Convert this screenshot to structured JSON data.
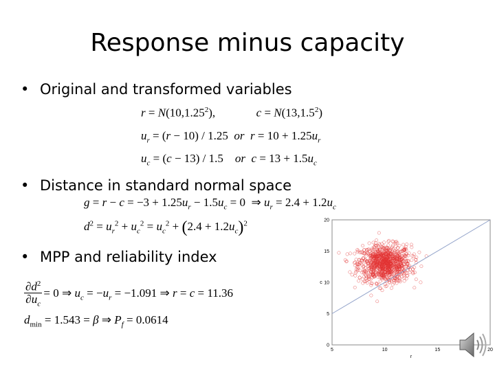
{
  "slide": {
    "title": "Response minus capacity",
    "bullets": [
      "Original and transformed variables",
      "Distance in standard normal space",
      "MPP and reliability index"
    ]
  },
  "chart_data": {
    "type": "scatter",
    "xlim": [
      5,
      20
    ],
    "ylim": [
      0,
      20
    ],
    "x_ticks": [
      "5",
      "10",
      "15",
      "20"
    ],
    "y_ticks": [
      "0",
      "5",
      "10",
      "15",
      "20"
    ],
    "xlabel": "r",
    "ylabel": "c",
    "marker": "open-circle",
    "series_color": "#e23030",
    "points_center": [
      10,
      13
    ],
    "points_std": [
      1.25,
      1.5
    ],
    "point_count": 1000,
    "limit_line": {
      "x": [
        5,
        20
      ],
      "y": [
        5,
        20
      ],
      "color": "#8fa0c8"
    }
  },
  "icons": {
    "speaker": "speaker-icon"
  }
}
